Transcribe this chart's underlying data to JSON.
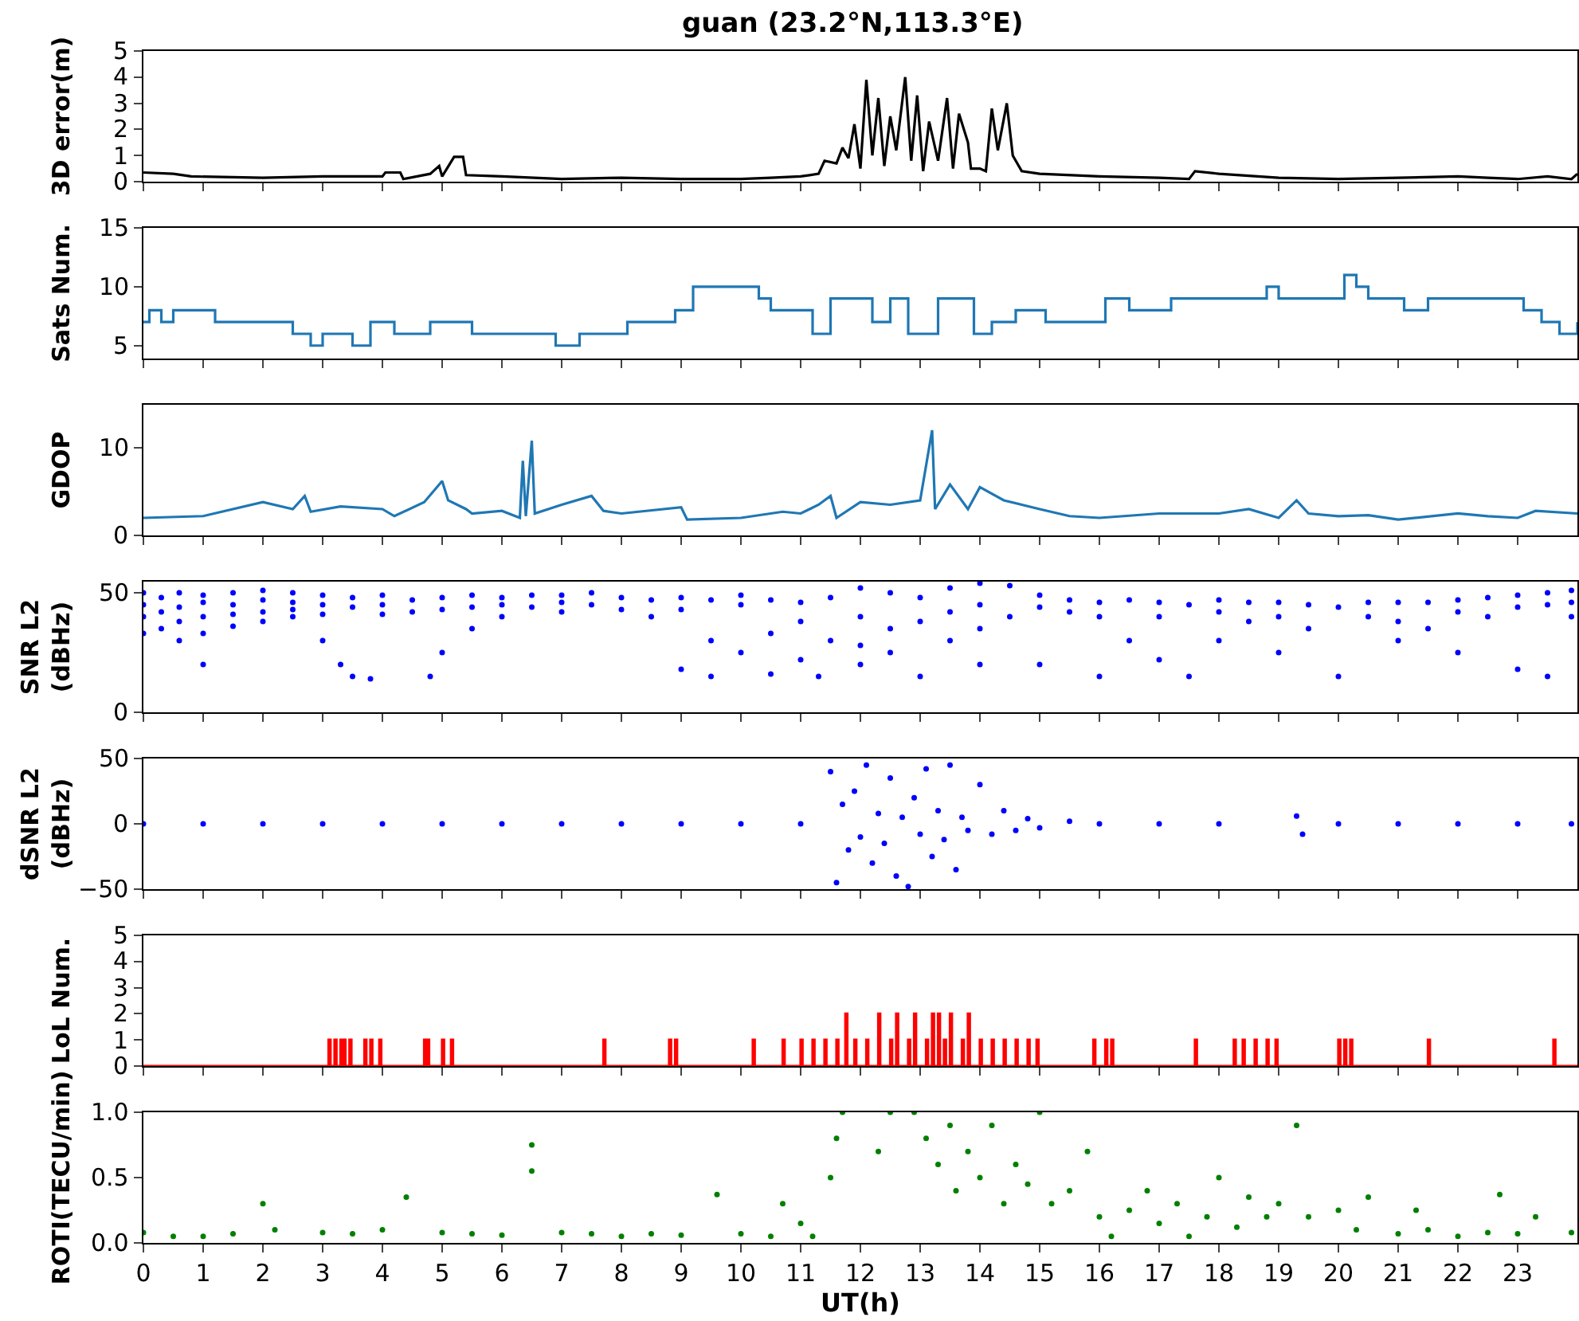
{
  "chart_data": [
    {
      "type": "line",
      "title": "guan (23.2°N,113.3°E)",
      "ylabel": "3D error(m)",
      "xlim": [
        0,
        24
      ],
      "xticks": [
        0,
        1,
        2,
        3,
        4,
        5,
        6,
        7,
        8,
        9,
        10,
        11,
        12,
        13,
        14,
        15,
        16,
        17,
        18,
        19,
        20,
        21,
        22,
        23
      ],
      "ylim": [
        0,
        5
      ],
      "yticks": [
        0,
        1,
        2,
        3,
        4,
        5
      ],
      "tick_labels": "y",
      "series": [
        {
          "color": "#000000",
          "x": [
            0,
            0.5,
            0.8,
            2,
            3,
            4,
            4.05,
            4.3,
            4.35,
            4.8,
            4.95,
            5.0,
            5.2,
            5.35,
            5.4,
            6,
            7,
            8,
            9,
            10,
            10.5,
            11,
            11.3,
            11.4,
            11.6,
            11.7,
            11.8,
            11.9,
            12.0,
            12.1,
            12.2,
            12.3,
            12.4,
            12.5,
            12.6,
            12.75,
            12.85,
            12.95,
            13.05,
            13.15,
            13.3,
            13.45,
            13.55,
            13.65,
            13.8,
            13.85,
            14.0,
            14.1,
            14.2,
            14.3,
            14.45,
            14.55,
            14.7,
            15,
            16,
            17,
            17.5,
            17.6,
            18,
            19,
            20,
            21,
            22,
            22.5,
            23,
            23.5,
            23.9,
            24
          ],
          "values": [
            0.35,
            0.3,
            0.2,
            0.15,
            0.2,
            0.2,
            0.35,
            0.35,
            0.1,
            0.3,
            0.6,
            0.2,
            0.95,
            0.95,
            0.25,
            0.2,
            0.1,
            0.15,
            0.1,
            0.1,
            0.15,
            0.2,
            0.3,
            0.8,
            0.7,
            1.3,
            0.9,
            2.2,
            0.5,
            3.9,
            1.0,
            3.2,
            0.6,
            2.5,
            1.2,
            4.0,
            0.8,
            3.3,
            0.4,
            2.3,
            0.8,
            3.2,
            0.5,
            2.6,
            1.5,
            0.5,
            0.5,
            0.4,
            2.8,
            1.2,
            3.0,
            1.0,
            0.4,
            0.3,
            0.2,
            0.15,
            0.1,
            0.4,
            0.3,
            0.15,
            0.1,
            0.15,
            0.2,
            0.15,
            0.1,
            0.2,
            0.1,
            0.3
          ]
        }
      ]
    },
    {
      "type": "step",
      "ylabel": "Sats Num.",
      "xlim": [
        0,
        24
      ],
      "xticks": [
        0,
        1,
        2,
        3,
        4,
        5,
        6,
        7,
        8,
        9,
        10,
        11,
        12,
        13,
        14,
        15,
        16,
        17,
        18,
        19,
        20,
        21,
        22,
        23
      ],
      "ylim": [
        3.9,
        15
      ],
      "yticks": [
        5,
        10,
        15
      ],
      "tick_labels": "y",
      "series": [
        {
          "color": "#1f77b4",
          "x": [
            0,
            0.1,
            0.3,
            0.5,
            1.2,
            2.5,
            2.8,
            3.0,
            3.5,
            3.8,
            4.2,
            4.8,
            5.5,
            6.5,
            6.9,
            7.3,
            7.8,
            8.1,
            8.9,
            9.2,
            10.3,
            10.5,
            10.9,
            11.2,
            11.5,
            12.2,
            12.5,
            12.8,
            13.3,
            13.9,
            14.2,
            14.6,
            15.1,
            15.8,
            16.1,
            16.5,
            17.2,
            18.4,
            18.8,
            19,
            20.1,
            20.3,
            20.5,
            21.1,
            21.5,
            22.3,
            23.1,
            23.4,
            23.7,
            24
          ],
          "values": [
            7,
            8,
            7,
            8,
            7,
            6,
            5,
            6,
            5,
            7,
            6,
            7,
            6,
            6,
            5,
            6,
            6,
            7,
            8,
            10,
            9,
            8,
            8,
            6,
            9,
            7,
            9,
            6,
            9,
            6,
            7,
            8,
            7,
            7,
            9,
            8,
            9,
            9,
            10,
            9,
            11,
            10,
            9,
            8,
            9,
            9,
            8,
            7,
            6,
            7
          ]
        }
      ]
    },
    {
      "type": "line",
      "ylabel": "GDOP",
      "xlim": [
        0,
        24
      ],
      "xticks": [
        0,
        1,
        2,
        3,
        4,
        5,
        6,
        7,
        8,
        9,
        10,
        11,
        12,
        13,
        14,
        15,
        16,
        17,
        18,
        19,
        20,
        21,
        22,
        23
      ],
      "ylim": [
        0,
        14.9
      ],
      "yticks": [
        0,
        10
      ],
      "tick_labels": "y",
      "series": [
        {
          "color": "#1f77b4",
          "x": [
            0,
            1,
            2,
            2.5,
            2.7,
            2.8,
            3.3,
            4,
            4.2,
            4.7,
            5,
            5.1,
            5.4,
            5.5,
            6,
            6.3,
            6.35,
            6.4,
            6.5,
            6.55,
            7,
            7.5,
            7.7,
            8,
            9,
            9.1,
            10,
            10.7,
            11,
            11.3,
            11.5,
            11.6,
            12,
            12.5,
            13.0,
            13.2,
            13.25,
            13.5,
            13.8,
            14,
            14.4,
            15,
            15.5,
            16,
            17,
            18,
            18.5,
            19,
            19.3,
            19.5,
            20,
            20.5,
            21,
            22,
            22.5,
            23,
            23.3,
            24
          ],
          "values": [
            2,
            2.2,
            3.8,
            3,
            4.5,
            2.7,
            3.3,
            3,
            2.2,
            3.8,
            6.2,
            4,
            3,
            2.5,
            2.8,
            2,
            8.5,
            2.2,
            10.8,
            2.5,
            3.5,
            4.5,
            2.8,
            2.5,
            3.2,
            1.8,
            2,
            2.7,
            2.5,
            3.5,
            4.5,
            2,
            3.8,
            3.5,
            4,
            12,
            3,
            5.8,
            3,
            5.5,
            4,
            3,
            2.2,
            2,
            2.5,
            2.5,
            3,
            2,
            4,
            2.5,
            2.2,
            2.3,
            1.8,
            2.5,
            2.2,
            2,
            2.8,
            2.5
          ]
        }
      ]
    },
    {
      "type": "scatter",
      "marker": "circle",
      "ylabel": "SNR L2\n(dBHz)",
      "xlim": [
        0,
        24
      ],
      "xticks": [
        0,
        1,
        2,
        3,
        4,
        5,
        6,
        7,
        8,
        9,
        10,
        11,
        12,
        13,
        14,
        15,
        16,
        17,
        18,
        19,
        20,
        21,
        22,
        23
      ],
      "ylim": [
        0,
        54.7
      ],
      "yticks": [
        0,
        50
      ],
      "tick_labels": "y",
      "series": [
        {
          "color": "#0000ff",
          "x": [
            0,
            0,
            0,
            0,
            0.3,
            0.3,
            0.3,
            0.6,
            0.6,
            0.6,
            0.6,
            1,
            1,
            1,
            1,
            1,
            1.5,
            1.5,
            1.5,
            1.5,
            2,
            2,
            2,
            2,
            2.5,
            2.5,
            2.5,
            2.5,
            3,
            3,
            3,
            3,
            3.3,
            3.5,
            3.5,
            3.5,
            3.8,
            4,
            4,
            4,
            4.5,
            4.5,
            4.8,
            5,
            5,
            5,
            5.5,
            5.5,
            5.5,
            6,
            6,
            6,
            6.5,
            6.5,
            7,
            7,
            7,
            7.5,
            7.5,
            8,
            8,
            8.5,
            8.5,
            9,
            9,
            9,
            9.5,
            9.5,
            9.5,
            10,
            10,
            10,
            10.5,
            10.5,
            10.5,
            11,
            11,
            11,
            11.3,
            11.5,
            11.5,
            12,
            12,
            12,
            12,
            12.5,
            12.5,
            12.5,
            13,
            13,
            13,
            13.5,
            13.5,
            13.5,
            14,
            14,
            14,
            14,
            14.5,
            14.5,
            15,
            15,
            15,
            15.5,
            15.5,
            16,
            16,
            16,
            16.5,
            16.5,
            17,
            17,
            17,
            17.5,
            17.5,
            18,
            18,
            18,
            18.5,
            18.5,
            19,
            19,
            19,
            19.5,
            19.5,
            20,
            20,
            20.5,
            20.5,
            21,
            21,
            21,
            21.5,
            21.5,
            22,
            22,
            22,
            22.5,
            22.5,
            23,
            23,
            23,
            23.5,
            23.5,
            23.5,
            23.9,
            23.9,
            23.9
          ],
          "values": [
            50,
            45,
            40,
            33,
            48,
            42,
            35,
            50,
            44,
            38,
            30,
            49,
            46,
            40,
            33,
            20,
            50,
            45,
            41,
            36,
            51,
            47,
            42,
            38,
            50,
            46,
            43,
            40,
            49,
            45,
            41,
            30,
            20,
            48,
            44,
            15,
            14,
            49,
            45,
            41,
            47,
            42,
            15,
            48,
            43,
            25,
            49,
            44,
            35,
            48,
            45,
            40,
            49,
            44,
            49,
            46,
            42,
            50,
            45,
            48,
            43,
            47,
            40,
            48,
            43,
            18,
            47,
            30,
            15,
            49,
            45,
            25,
            47,
            33,
            16,
            46,
            38,
            22,
            15,
            48,
            30,
            52,
            40,
            28,
            20,
            50,
            35,
            25,
            48,
            38,
            15,
            52,
            42,
            30,
            54,
            45,
            35,
            20,
            53,
            40,
            49,
            44,
            20,
            47,
            42,
            46,
            40,
            15,
            47,
            30,
            46,
            40,
            22,
            45,
            15,
            47,
            42,
            30,
            46,
            38,
            46,
            40,
            25,
            45,
            35,
            44,
            15,
            46,
            40,
            46,
            38,
            30,
            46,
            35,
            47,
            42,
            25,
            48,
            40,
            49,
            44,
            18,
            50,
            45,
            15,
            51,
            46,
            40
          ]
        }
      ]
    },
    {
      "type": "scatter",
      "marker": "circle",
      "ylabel": "dSNR L2\n(dBHz)",
      "xlim": [
        0,
        24
      ],
      "xticks": [
        0,
        1,
        2,
        3,
        4,
        5,
        6,
        7,
        8,
        9,
        10,
        11,
        12,
        13,
        14,
        15,
        16,
        17,
        18,
        19,
        20,
        21,
        22,
        23
      ],
      "ylim": [
        -50,
        50
      ],
      "yticks": [
        {
          "value": -50,
          "label": "−50"
        },
        0,
        50
      ],
      "tick_labels": "y",
      "series": [
        {
          "color": "#0000ff",
          "x": [
            0,
            1,
            2,
            3,
            4,
            5,
            6,
            7,
            8,
            9,
            10,
            11,
            11.5,
            11.6,
            11.7,
            11.8,
            11.9,
            12,
            12.1,
            12.2,
            12.3,
            12.4,
            12.5,
            12.6,
            12.7,
            12.8,
            12.9,
            13,
            13.1,
            13.2,
            13.3,
            13.4,
            13.5,
            13.6,
            13.7,
            13.8,
            14,
            14.2,
            14.4,
            14.6,
            14.8,
            15,
            15.5,
            16,
            17,
            18,
            19.3,
            19.4,
            20,
            21,
            22,
            23,
            23.9
          ],
          "values": [
            0,
            0,
            0,
            0,
            0,
            0,
            0,
            0,
            0,
            0,
            0,
            0,
            40,
            -45,
            15,
            -20,
            25,
            -10,
            45,
            -30,
            8,
            -15,
            35,
            -40,
            5,
            -48,
            20,
            -8,
            42,
            -25,
            10,
            -12,
            45,
            -35,
            5,
            -5,
            30,
            -8,
            10,
            -5,
            4,
            -3,
            2,
            0,
            0,
            0,
            6,
            -8,
            0,
            0,
            0,
            0,
            0
          ]
        }
      ]
    },
    {
      "type": "step",
      "ylabel": "LoL Num.",
      "xlim": [
        0,
        24
      ],
      "xticks": [
        0,
        1,
        2,
        3,
        4,
        5,
        6,
        7,
        8,
        9,
        10,
        11,
        12,
        13,
        14,
        15,
        16,
        17,
        18,
        19,
        20,
        21,
        22,
        23
      ],
      "ylim": [
        0,
        5
      ],
      "yticks": [
        0,
        1,
        2,
        3,
        4,
        5
      ],
      "tick_labels": "y",
      "series": [
        {
          "color": "#ff0000",
          "x": [
            0,
            3.1,
            3.13,
            3.2,
            3.23,
            3.3,
            3.33,
            3.35,
            3.38,
            3.45,
            3.48,
            3.7,
            3.73,
            3.8,
            3.83,
            3.95,
            3.98,
            4.7,
            4.73,
            4.75,
            4.78,
            5.0,
            5.03,
            5.15,
            5.18,
            7.7,
            7.73,
            8.8,
            8.83,
            8.9,
            8.93,
            10.2,
            10.23,
            10.7,
            10.73,
            11.0,
            11.03,
            11.2,
            11.23,
            11.4,
            11.43,
            11.6,
            11.63,
            11.75,
            11.78,
            11.9,
            11.93,
            12.1,
            12.13,
            12.3,
            12.33,
            12.5,
            12.53,
            12.6,
            12.63,
            12.8,
            12.83,
            12.9,
            12.93,
            13.1,
            13.13,
            13.2,
            13.23,
            13.3,
            13.33,
            13.4,
            13.43,
            13.5,
            13.53,
            13.7,
            13.73,
            13.8,
            13.83,
            14.0,
            14.03,
            14.2,
            14.23,
            14.4,
            14.43,
            14.6,
            14.63,
            14.8,
            14.83,
            14.95,
            14.98,
            15.9,
            15.93,
            16.1,
            16.13,
            16.2,
            16.23,
            17.6,
            17.63,
            18.25,
            18.28,
            18.4,
            18.43,
            18.6,
            18.63,
            18.8,
            18.83,
            18.95,
            18.98,
            20.0,
            20.03,
            20.1,
            20.13,
            20.2,
            20.23,
            21.5,
            21.53,
            23.6,
            23.63,
            24
          ],
          "values": [
            0,
            1,
            0,
            1,
            0,
            1,
            0,
            1,
            0,
            1,
            0,
            1,
            0,
            1,
            0,
            1,
            0,
            1,
            0,
            1,
            0,
            1,
            0,
            1,
            0,
            1,
            0,
            1,
            0,
            1,
            0,
            1,
            0,
            1,
            0,
            1,
            0,
            1,
            0,
            1,
            0,
            1,
            0,
            2,
            0,
            1,
            0,
            1,
            0,
            2,
            0,
            1,
            0,
            2,
            0,
            1,
            0,
            2,
            0,
            1,
            0,
            2,
            0,
            2,
            0,
            1,
            0,
            2,
            0,
            1,
            0,
            2,
            0,
            1,
            0,
            1,
            0,
            1,
            0,
            1,
            0,
            1,
            0,
            1,
            0,
            1,
            0,
            1,
            0,
            1,
            0,
            1,
            0,
            1,
            0,
            1,
            0,
            1,
            0,
            1,
            0,
            1,
            0,
            1,
            0,
            1,
            0,
            1,
            0,
            1,
            0,
            1,
            0,
            0
          ]
        }
      ]
    },
    {
      "type": "scatter",
      "marker": "circle",
      "ylabel": "ROTI(TECU/min)",
      "xlabel": "UT(h)",
      "xlim": [
        0,
        24
      ],
      "xticks": [
        0,
        1,
        2,
        3,
        4,
        5,
        6,
        7,
        8,
        9,
        10,
        11,
        12,
        13,
        14,
        15,
        16,
        17,
        18,
        19,
        20,
        21,
        22,
        23
      ],
      "ylim": [
        0,
        1
      ],
      "yticks": [
        {
          "value": 0,
          "label": "0.0"
        },
        {
          "value": 0.5,
          "label": "0.5"
        },
        {
          "value": 1,
          "label": "1.0"
        }
      ],
      "series": [
        {
          "color": "#008000",
          "x": [
            0,
            0.5,
            1,
            1.5,
            2,
            2.2,
            3,
            3.5,
            4,
            4.4,
            5,
            5.5,
            6,
            6.5,
            6.5,
            7,
            7.5,
            8,
            8.5,
            9,
            9.6,
            10,
            10.5,
            10.7,
            11,
            11.2,
            11.5,
            11.6,
            11.7,
            12.3,
            12.5,
            12.9,
            13.1,
            13.3,
            13.5,
            13.6,
            13.8,
            14,
            14.2,
            14.4,
            14.6,
            14.8,
            15,
            15.2,
            15.5,
            15.8,
            16,
            16.2,
            16.5,
            16.8,
            17,
            17.3,
            17.5,
            17.8,
            18,
            18.3,
            18.5,
            18.8,
            19,
            19.3,
            19.5,
            20,
            20.3,
            20.5,
            21,
            21.3,
            21.5,
            22,
            22.5,
            22.7,
            23,
            23.3,
            23.9
          ],
          "values": [
            0.08,
            0.05,
            0.05,
            0.07,
            0.3,
            0.1,
            0.08,
            0.07,
            0.1,
            0.35,
            0.08,
            0.07,
            0.06,
            0.75,
            0.55,
            0.08,
            0.07,
            0.05,
            0.07,
            0.06,
            0.37,
            0.07,
            0.05,
            0.3,
            0.15,
            0.05,
            0.5,
            0.8,
            1.0,
            0.7,
            1.0,
            1.0,
            0.8,
            0.6,
            0.9,
            0.4,
            0.7,
            0.5,
            0.9,
            0.3,
            0.6,
            0.45,
            1.0,
            0.3,
            0.4,
            0.7,
            0.2,
            0.05,
            0.25,
            0.4,
            0.15,
            0.3,
            0.05,
            0.2,
            0.5,
            0.12,
            0.35,
            0.2,
            0.3,
            0.9,
            0.2,
            0.25,
            0.1,
            0.35,
            0.07,
            0.25,
            0.1,
            0.05,
            0.08,
            0.37,
            0.07,
            0.2,
            0.08
          ]
        }
      ]
    }
  ]
}
